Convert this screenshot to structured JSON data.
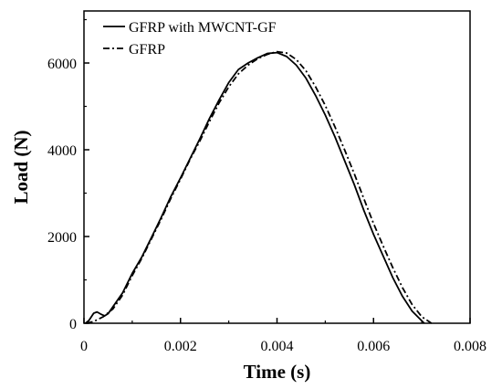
{
  "chart_data": {
    "type": "line",
    "xlabel": "Time (s)",
    "ylabel": "Load (N)",
    "xlim": [
      0,
      0.008
    ],
    "ylim": [
      0,
      7200
    ],
    "x_ticks": [
      0,
      0.002,
      0.004,
      0.006,
      0.008
    ],
    "x_tick_labels": [
      "0",
      "0.002",
      "0.004",
      "0.006",
      "0.008"
    ],
    "y_ticks": [
      0,
      2000,
      4000,
      6000
    ],
    "y_tick_labels": [
      "0",
      "2000",
      "4000",
      "6000"
    ],
    "grid": false,
    "legend_position": "top-left",
    "series": [
      {
        "name": "GFRP with MWCNT-GF",
        "style": "solid",
        "color": "#000000",
        "points": [
          [
            3e-05,
            0
          ],
          [
            0.0001,
            60
          ],
          [
            0.0002,
            230
          ],
          [
            0.00027,
            260
          ],
          [
            0.00035,
            210
          ],
          [
            0.00043,
            170
          ],
          [
            0.0005,
            220
          ],
          [
            0.0006,
            380
          ],
          [
            0.0008,
            700
          ],
          [
            0.001,
            1150
          ],
          [
            0.0012,
            1530
          ],
          [
            0.0014,
            1980
          ],
          [
            0.0016,
            2440
          ],
          [
            0.0018,
            2920
          ],
          [
            0.002,
            3350
          ],
          [
            0.0022,
            3800
          ],
          [
            0.0024,
            4250
          ],
          [
            0.0026,
            4720
          ],
          [
            0.0028,
            5150
          ],
          [
            0.003,
            5550
          ],
          [
            0.0032,
            5850
          ],
          [
            0.0034,
            6000
          ],
          [
            0.0036,
            6120
          ],
          [
            0.0038,
            6220
          ],
          [
            0.004,
            6240
          ],
          [
            0.0042,
            6150
          ],
          [
            0.0044,
            5950
          ],
          [
            0.0046,
            5650
          ],
          [
            0.0048,
            5250
          ],
          [
            0.005,
            4800
          ],
          [
            0.0052,
            4300
          ],
          [
            0.0054,
            3750
          ],
          [
            0.0056,
            3200
          ],
          [
            0.0058,
            2600
          ],
          [
            0.006,
            2050
          ],
          [
            0.0062,
            1550
          ],
          [
            0.0064,
            1050
          ],
          [
            0.0066,
            620
          ],
          [
            0.0068,
            280
          ],
          [
            0.00705,
            0
          ]
        ]
      },
      {
        "name": "GFRP",
        "style": "dashdot",
        "color": "#000000",
        "points": [
          [
            5e-05,
            0
          ],
          [
            0.0002,
            40
          ],
          [
            0.0004,
            150
          ],
          [
            0.0006,
            330
          ],
          [
            0.0008,
            650
          ],
          [
            0.001,
            1100
          ],
          [
            0.0012,
            1500
          ],
          [
            0.0014,
            1950
          ],
          [
            0.0016,
            2400
          ],
          [
            0.0018,
            2880
          ],
          [
            0.002,
            3320
          ],
          [
            0.0022,
            3780
          ],
          [
            0.0024,
            4200
          ],
          [
            0.0026,
            4650
          ],
          [
            0.0028,
            5080
          ],
          [
            0.003,
            5450
          ],
          [
            0.0032,
            5750
          ],
          [
            0.0034,
            5950
          ],
          [
            0.0036,
            6100
          ],
          [
            0.0038,
            6200
          ],
          [
            0.004,
            6260
          ],
          [
            0.0042,
            6230
          ],
          [
            0.0044,
            6080
          ],
          [
            0.0046,
            5820
          ],
          [
            0.0048,
            5450
          ],
          [
            0.005,
            5020
          ],
          [
            0.0052,
            4530
          ],
          [
            0.0054,
            4000
          ],
          [
            0.0056,
            3450
          ],
          [
            0.0058,
            2870
          ],
          [
            0.006,
            2300
          ],
          [
            0.0062,
            1780
          ],
          [
            0.0064,
            1280
          ],
          [
            0.0066,
            820
          ],
          [
            0.0068,
            430
          ],
          [
            0.007,
            150
          ],
          [
            0.0072,
            0
          ]
        ]
      }
    ]
  }
}
